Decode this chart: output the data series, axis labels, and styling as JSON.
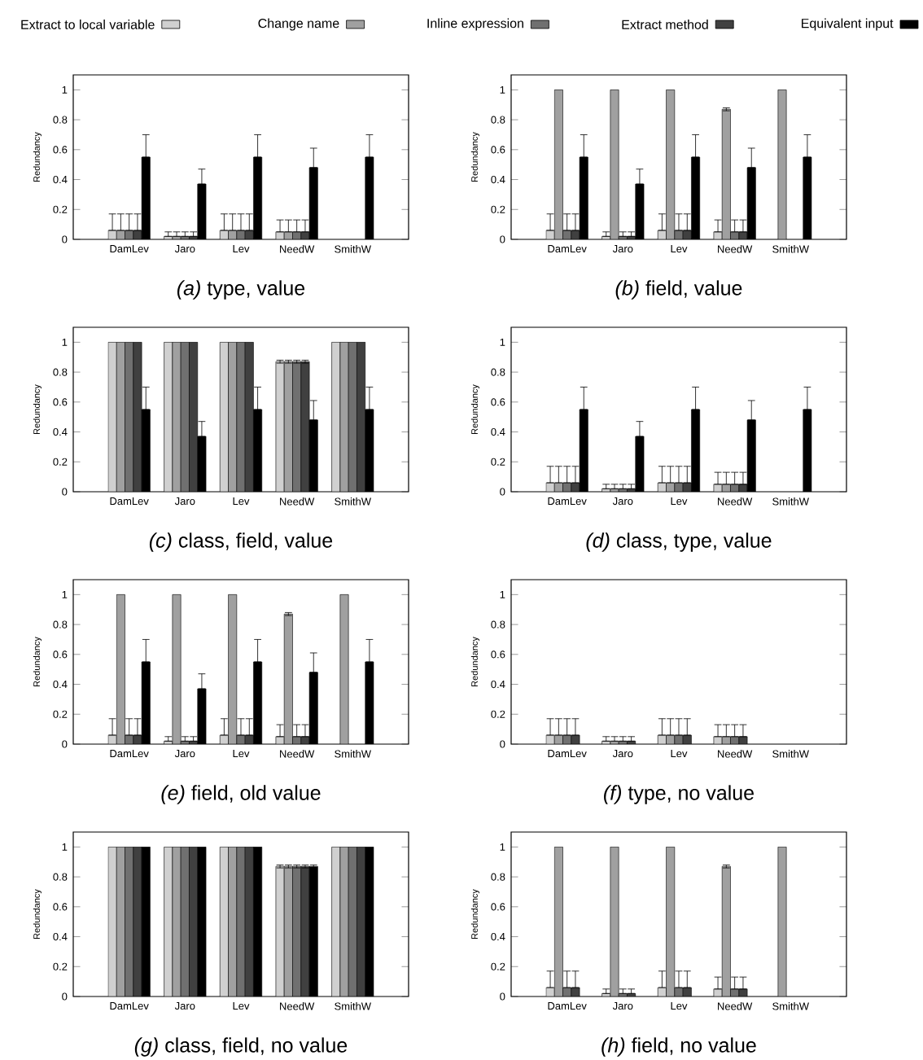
{
  "chart_data": [
    {
      "type": "bar",
      "title": "*(a)* type, value",
      "ylabel": "Redundancy",
      "categories": [
        "DamLev",
        "Jaro",
        "Lev",
        "NeedW",
        "SmithW"
      ],
      "ylim": [
        0,
        1.1
      ],
      "yticks": [
        0,
        0.2,
        0.4,
        0.6,
        0.8,
        1
      ],
      "legend": "top",
      "series": [
        {
          "name": "Extract to local variable",
          "color": "#d0d0d0",
          "values": [
            0.06,
            0.02,
            0.06,
            0.05,
            null
          ],
          "errors": [
            [
              0.06,
              0.17
            ],
            [
              0.02,
              0.05
            ],
            [
              0.06,
              0.17
            ],
            [
              0.05,
              0.13
            ],
            null
          ]
        },
        {
          "name": "Change name",
          "color": "#a0a0a0",
          "values": [
            0.06,
            0.02,
            0.06,
            0.05,
            null
          ],
          "errors": [
            [
              0.06,
              0.17
            ],
            [
              0.02,
              0.05
            ],
            [
              0.06,
              0.17
            ],
            [
              0.05,
              0.13
            ],
            null
          ]
        },
        {
          "name": "Inline expression",
          "color": "#707070",
          "values": [
            0.06,
            0.02,
            0.06,
            0.05,
            null
          ],
          "errors": [
            [
              0.06,
              0.17
            ],
            [
              0.02,
              0.05
            ],
            [
              0.06,
              0.17
            ],
            [
              0.05,
              0.13
            ],
            null
          ]
        },
        {
          "name": "Extract method",
          "color": "#404040",
          "values": [
            0.06,
            0.02,
            0.06,
            0.05,
            null
          ],
          "errors": [
            [
              0.06,
              0.17
            ],
            [
              0.02,
              0.05
            ],
            [
              0.06,
              0.17
            ],
            [
              0.05,
              0.13
            ],
            null
          ]
        },
        {
          "name": "Equivalent input",
          "color": "#000000",
          "values": [
            0.55,
            0.37,
            0.55,
            0.48,
            0.55
          ],
          "errors": [
            [
              0.55,
              0.7
            ],
            [
              0.37,
              0.47
            ],
            [
              0.55,
              0.7
            ],
            [
              0.48,
              0.61
            ],
            [
              0.55,
              0.7
            ]
          ]
        }
      ]
    },
    {
      "type": "bar",
      "title": "*(b)* field, value",
      "ylabel": "Redundancy",
      "categories": [
        "DamLev",
        "Jaro",
        "Lev",
        "NeedW",
        "SmithW"
      ],
      "ylim": [
        0,
        1.1
      ],
      "yticks": [
        0,
        0.2,
        0.4,
        0.6,
        0.8,
        1
      ],
      "series": [
        {
          "color": "#d0d0d0",
          "values": [
            0.06,
            0.02,
            0.06,
            0.05,
            null
          ],
          "errors": [
            [
              0.06,
              0.17
            ],
            [
              0.02,
              0.05
            ],
            [
              0.06,
              0.17
            ],
            [
              0.05,
              0.13
            ],
            null
          ]
        },
        {
          "color": "#a0a0a0",
          "values": [
            1,
            1,
            1,
            0.87,
            1
          ],
          "errors": [
            null,
            null,
            null,
            [
              0.86,
              0.88
            ],
            null
          ]
        },
        {
          "color": "#707070",
          "values": [
            0.06,
            0.02,
            0.06,
            0.05,
            null
          ],
          "errors": [
            [
              0.06,
              0.17
            ],
            [
              0.02,
              0.05
            ],
            [
              0.06,
              0.17
            ],
            [
              0.05,
              0.13
            ],
            null
          ]
        },
        {
          "color": "#404040",
          "values": [
            0.06,
            0.02,
            0.06,
            0.05,
            null
          ],
          "errors": [
            [
              0.06,
              0.17
            ],
            [
              0.02,
              0.05
            ],
            [
              0.06,
              0.17
            ],
            [
              0.05,
              0.13
            ],
            null
          ]
        },
        {
          "color": "#000000",
          "values": [
            0.55,
            0.37,
            0.55,
            0.48,
            0.55
          ],
          "errors": [
            [
              0.55,
              0.7
            ],
            [
              0.37,
              0.47
            ],
            [
              0.55,
              0.7
            ],
            [
              0.48,
              0.61
            ],
            [
              0.55,
              0.7
            ]
          ]
        }
      ]
    },
    {
      "type": "bar",
      "title": "*(c)* class, field, value",
      "ylabel": "Redundancy",
      "categories": [
        "DamLev",
        "Jaro",
        "Lev",
        "NeedW",
        "SmithW"
      ],
      "ylim": [
        0,
        1.1
      ],
      "yticks": [
        0,
        0.2,
        0.4,
        0.6,
        0.8,
        1
      ],
      "series": [
        {
          "color": "#d0d0d0",
          "values": [
            1,
            1,
            1,
            0.87,
            1
          ],
          "errors": [
            null,
            null,
            null,
            [
              0.86,
              0.88
            ],
            null
          ]
        },
        {
          "color": "#a0a0a0",
          "values": [
            1,
            1,
            1,
            0.87,
            1
          ],
          "errors": [
            null,
            null,
            null,
            [
              0.86,
              0.88
            ],
            null
          ]
        },
        {
          "color": "#707070",
          "values": [
            1,
            1,
            1,
            0.87,
            1
          ],
          "errors": [
            null,
            null,
            null,
            [
              0.86,
              0.88
            ],
            null
          ]
        },
        {
          "color": "#404040",
          "values": [
            1,
            1,
            1,
            0.87,
            1
          ],
          "errors": [
            null,
            null,
            null,
            [
              0.86,
              0.88
            ],
            null
          ]
        },
        {
          "color": "#000000",
          "values": [
            0.55,
            0.37,
            0.55,
            0.48,
            0.55
          ],
          "errors": [
            [
              0.55,
              0.7
            ],
            [
              0.37,
              0.47
            ],
            [
              0.55,
              0.7
            ],
            [
              0.48,
              0.61
            ],
            [
              0.55,
              0.7
            ]
          ]
        }
      ]
    },
    {
      "type": "bar",
      "title": "*(d)* class, type, value",
      "ylabel": "Redundancy",
      "categories": [
        "DamLev",
        "Jaro",
        "Lev",
        "NeedW",
        "SmithW"
      ],
      "ylim": [
        0,
        1.1
      ],
      "yticks": [
        0,
        0.2,
        0.4,
        0.6,
        0.8,
        1
      ],
      "series": [
        {
          "color": "#d0d0d0",
          "values": [
            0.06,
            0.02,
            0.06,
            0.05,
            null
          ],
          "errors": [
            [
              0.06,
              0.17
            ],
            [
              0.02,
              0.05
            ],
            [
              0.06,
              0.17
            ],
            [
              0.05,
              0.13
            ],
            null
          ]
        },
        {
          "color": "#a0a0a0",
          "values": [
            0.06,
            0.02,
            0.06,
            0.05,
            null
          ],
          "errors": [
            [
              0.06,
              0.17
            ],
            [
              0.02,
              0.05
            ],
            [
              0.06,
              0.17
            ],
            [
              0.05,
              0.13
            ],
            null
          ]
        },
        {
          "color": "#707070",
          "values": [
            0.06,
            0.02,
            0.06,
            0.05,
            null
          ],
          "errors": [
            [
              0.06,
              0.17
            ],
            [
              0.02,
              0.05
            ],
            [
              0.06,
              0.17
            ],
            [
              0.05,
              0.13
            ],
            null
          ]
        },
        {
          "color": "#404040",
          "values": [
            0.06,
            0.02,
            0.06,
            0.05,
            null
          ],
          "errors": [
            [
              0.06,
              0.17
            ],
            [
              0.02,
              0.05
            ],
            [
              0.06,
              0.17
            ],
            [
              0.05,
              0.13
            ],
            null
          ]
        },
        {
          "color": "#000000",
          "values": [
            0.55,
            0.37,
            0.55,
            0.48,
            0.55
          ],
          "errors": [
            [
              0.55,
              0.7
            ],
            [
              0.37,
              0.47
            ],
            [
              0.55,
              0.7
            ],
            [
              0.48,
              0.61
            ],
            [
              0.55,
              0.7
            ]
          ]
        }
      ]
    },
    {
      "type": "bar",
      "title": "*(e)* field, old value",
      "ylabel": "Redundancy",
      "categories": [
        "DamLev",
        "Jaro",
        "Lev",
        "NeedW",
        "SmithW"
      ],
      "ylim": [
        0,
        1.1
      ],
      "yticks": [
        0,
        0.2,
        0.4,
        0.6,
        0.8,
        1
      ],
      "series": [
        {
          "color": "#d0d0d0",
          "values": [
            0.06,
            0.02,
            0.06,
            0.05,
            null
          ],
          "errors": [
            [
              0.06,
              0.17
            ],
            [
              0.02,
              0.05
            ],
            [
              0.06,
              0.17
            ],
            [
              0.05,
              0.13
            ],
            null
          ]
        },
        {
          "color": "#a0a0a0",
          "values": [
            1,
            1,
            1,
            0.87,
            1
          ],
          "errors": [
            null,
            null,
            null,
            [
              0.86,
              0.88
            ],
            null
          ]
        },
        {
          "color": "#707070",
          "values": [
            0.06,
            0.02,
            0.06,
            0.05,
            null
          ],
          "errors": [
            [
              0.06,
              0.17
            ],
            [
              0.02,
              0.05
            ],
            [
              0.06,
              0.17
            ],
            [
              0.05,
              0.13
            ],
            null
          ]
        },
        {
          "color": "#404040",
          "values": [
            0.06,
            0.02,
            0.06,
            0.05,
            null
          ],
          "errors": [
            [
              0.06,
              0.17
            ],
            [
              0.02,
              0.05
            ],
            [
              0.06,
              0.17
            ],
            [
              0.05,
              0.13
            ],
            null
          ]
        },
        {
          "color": "#000000",
          "values": [
            0.55,
            0.37,
            0.55,
            0.48,
            0.55
          ],
          "errors": [
            [
              0.55,
              0.7
            ],
            [
              0.37,
              0.47
            ],
            [
              0.55,
              0.7
            ],
            [
              0.48,
              0.61
            ],
            [
              0.55,
              0.7
            ]
          ]
        }
      ]
    },
    {
      "type": "bar",
      "title": "*(f)* type, no value",
      "ylabel": "Redundancy",
      "categories": [
        "DamLev",
        "Jaro",
        "Lev",
        "NeedW",
        "SmithW"
      ],
      "ylim": [
        0,
        1.1
      ],
      "yticks": [
        0,
        0.2,
        0.4,
        0.6,
        0.8,
        1
      ],
      "series": [
        {
          "color": "#d0d0d0",
          "values": [
            0.06,
            0.02,
            0.06,
            0.05,
            null
          ],
          "errors": [
            [
              0.06,
              0.17
            ],
            [
              0.02,
              0.05
            ],
            [
              0.06,
              0.17
            ],
            [
              0.05,
              0.13
            ],
            null
          ]
        },
        {
          "color": "#a0a0a0",
          "values": [
            0.06,
            0.02,
            0.06,
            0.05,
            null
          ],
          "errors": [
            [
              0.06,
              0.17
            ],
            [
              0.02,
              0.05
            ],
            [
              0.06,
              0.17
            ],
            [
              0.05,
              0.13
            ],
            null
          ]
        },
        {
          "color": "#707070",
          "values": [
            0.06,
            0.02,
            0.06,
            0.05,
            null
          ],
          "errors": [
            [
              0.06,
              0.17
            ],
            [
              0.02,
              0.05
            ],
            [
              0.06,
              0.17
            ],
            [
              0.05,
              0.13
            ],
            null
          ]
        },
        {
          "color": "#404040",
          "values": [
            0.06,
            0.02,
            0.06,
            0.05,
            null
          ],
          "errors": [
            [
              0.06,
              0.17
            ],
            [
              0.02,
              0.05
            ],
            [
              0.06,
              0.17
            ],
            [
              0.05,
              0.13
            ],
            null
          ]
        },
        {
          "color": "#000000",
          "values": [
            null,
            null,
            null,
            null,
            null
          ]
        }
      ]
    },
    {
      "type": "bar",
      "title": "*(g)* class, field, no value",
      "ylabel": "Redundancy",
      "categories": [
        "DamLev",
        "Jaro",
        "Lev",
        "NeedW",
        "SmithW"
      ],
      "ylim": [
        0,
        1.1
      ],
      "yticks": [
        0,
        0.2,
        0.4,
        0.6,
        0.8,
        1
      ],
      "series": [
        {
          "color": "#d0d0d0",
          "values": [
            1,
            1,
            1,
            0.87,
            1
          ],
          "errors": [
            null,
            null,
            null,
            [
              0.86,
              0.88
            ],
            null
          ]
        },
        {
          "color": "#a0a0a0",
          "values": [
            1,
            1,
            1,
            0.87,
            1
          ],
          "errors": [
            null,
            null,
            null,
            [
              0.86,
              0.88
            ],
            null
          ]
        },
        {
          "color": "#707070",
          "values": [
            1,
            1,
            1,
            0.87,
            1
          ],
          "errors": [
            null,
            null,
            null,
            [
              0.86,
              0.88
            ],
            null
          ]
        },
        {
          "color": "#404040",
          "values": [
            1,
            1,
            1,
            0.87,
            1
          ],
          "errors": [
            null,
            null,
            null,
            [
              0.86,
              0.88
            ],
            null
          ]
        },
        {
          "color": "#000000",
          "values": [
            1,
            1,
            1,
            0.87,
            1
          ],
          "errors": [
            null,
            null,
            null,
            [
              0.86,
              0.88
            ],
            null
          ]
        }
      ]
    },
    {
      "type": "bar",
      "title": "*(h)* field, no value",
      "ylabel": "Redundancy",
      "categories": [
        "DamLev",
        "Jaro",
        "Lev",
        "NeedW",
        "SmithW"
      ],
      "ylim": [
        0,
        1.1
      ],
      "yticks": [
        0,
        0.2,
        0.4,
        0.6,
        0.8,
        1
      ],
      "series": [
        {
          "color": "#d0d0d0",
          "values": [
            0.06,
            0.02,
            0.06,
            0.05,
            null
          ],
          "errors": [
            [
              0.06,
              0.17
            ],
            [
              0.02,
              0.05
            ],
            [
              0.06,
              0.17
            ],
            [
              0.05,
              0.13
            ],
            null
          ]
        },
        {
          "color": "#a0a0a0",
          "values": [
            1,
            1,
            1,
            0.87,
            1
          ],
          "errors": [
            null,
            null,
            null,
            [
              0.86,
              0.88
            ],
            null
          ]
        },
        {
          "color": "#707070",
          "values": [
            0.06,
            0.02,
            0.06,
            0.05,
            null
          ],
          "errors": [
            [
              0.06,
              0.17
            ],
            [
              0.02,
              0.05
            ],
            [
              0.06,
              0.17
            ],
            [
              0.05,
              0.13
            ],
            null
          ]
        },
        {
          "color": "#404040",
          "values": [
            0.06,
            0.02,
            0.06,
            0.05,
            null
          ],
          "errors": [
            [
              0.06,
              0.17
            ],
            [
              0.02,
              0.05
            ],
            [
              0.06,
              0.17
            ],
            [
              0.05,
              0.13
            ],
            null
          ]
        },
        {
          "color": "#000000",
          "values": [
            null,
            null,
            null,
            null,
            null
          ]
        }
      ]
    }
  ]
}
